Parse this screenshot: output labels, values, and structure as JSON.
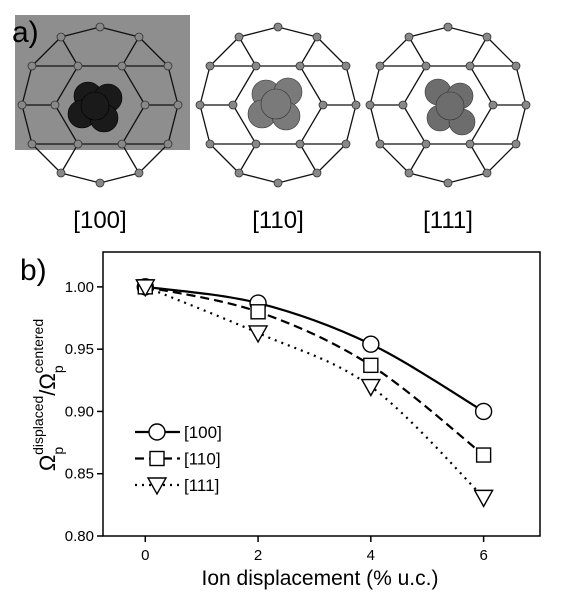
{
  "panel_labels": [
    "a)",
    "b)"
  ],
  "structures": [
    "[100]",
    "[110]",
    "[111]"
  ],
  "chart_data": {
    "type": "line",
    "xlabel": "Ion displacement (% u.c.)",
    "ylabel": [
      "Ω",
      "p",
      "displaced",
      "/Ω",
      "p",
      "centered"
    ],
    "x": [
      0,
      2,
      4,
      6
    ],
    "xlim": [
      -0.75,
      7
    ],
    "xticks": [
      0,
      2,
      4,
      6
    ],
    "ylim": [
      0.8,
      1.028
    ],
    "yticks": [
      {
        "value": 0.8,
        "label": "0.80"
      },
      {
        "value": 0.85,
        "label": "0.85"
      },
      {
        "value": 0.9,
        "label": "0.90"
      },
      {
        "value": 0.95,
        "label": "0.95"
      },
      {
        "value": 1.0,
        "label": "1.00"
      }
    ],
    "legend": "lower-left",
    "series": [
      {
        "name": "[100]",
        "color": "#000000",
        "marker": "circle",
        "dash": "solid",
        "values": [
          1.0,
          0.987,
          0.954,
          0.9
        ]
      },
      {
        "name": "[110]",
        "color": "#000000",
        "marker": "square",
        "dash": "dashed",
        "values": [
          1.0,
          0.98,
          0.937,
          0.865
        ]
      },
      {
        "name": "[111]",
        "color": "#000000",
        "marker": "triangle-down",
        "dash": "dotted",
        "values": [
          1.0,
          0.963,
          0.92,
          0.831
        ]
      }
    ]
  }
}
